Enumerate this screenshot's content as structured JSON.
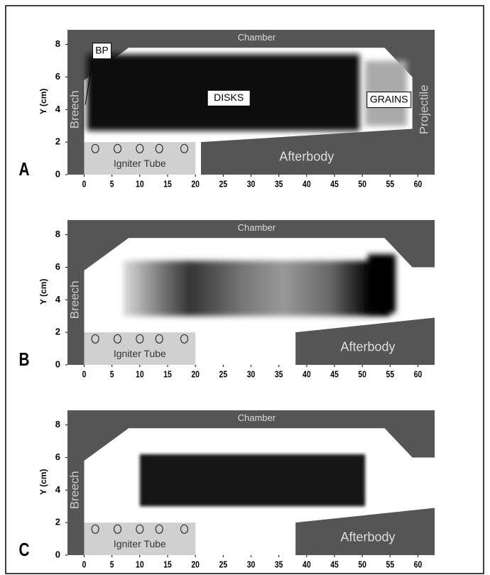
{
  "panels": [
    {
      "label": "A",
      "ylabel": "Y (cm)",
      "xlim": [
        -3,
        63
      ],
      "ylim": [
        0,
        8.9
      ],
      "xticks": [
        0,
        5,
        10,
        15,
        20,
        25,
        30,
        35,
        40,
        45,
        50,
        55,
        60
      ],
      "yticks": [
        0,
        2,
        4,
        6,
        8
      ],
      "regions": {
        "chamber": "Chamber",
        "breech": "Breech",
        "igniter": "Igniter Tube",
        "afterbody": "Afterbody",
        "projectile": "Projectile",
        "disks": "DISKS",
        "grains": "GRAINS",
        "bp": "BP"
      }
    },
    {
      "label": "B",
      "ylabel": "Y (cm)",
      "xlim": [
        -3,
        63
      ],
      "ylim": [
        0,
        8.9
      ],
      "xticks": [
        0,
        5,
        10,
        15,
        20,
        25,
        30,
        35,
        40,
        45,
        50,
        55,
        60
      ],
      "yticks": [
        0,
        2,
        4,
        6,
        8
      ],
      "regions": {
        "chamber": "Chamber",
        "breech": "Breech",
        "igniter": "Igniter Tube",
        "afterbody": "Afterbody"
      }
    },
    {
      "label": "C",
      "ylabel": "Y (cm)",
      "xlim": [
        -3,
        63
      ],
      "ylim": [
        0,
        8.9
      ],
      "xticks": [
        0,
        5,
        10,
        15,
        20,
        25,
        30,
        35,
        40,
        45,
        50,
        55,
        60
      ],
      "yticks": [
        0,
        2,
        4,
        6,
        8
      ],
      "regions": {
        "chamber": "Chamber",
        "breech": "Breech",
        "igniter": "Igniter Tube",
        "afterbody": "Afterbody"
      }
    }
  ]
}
